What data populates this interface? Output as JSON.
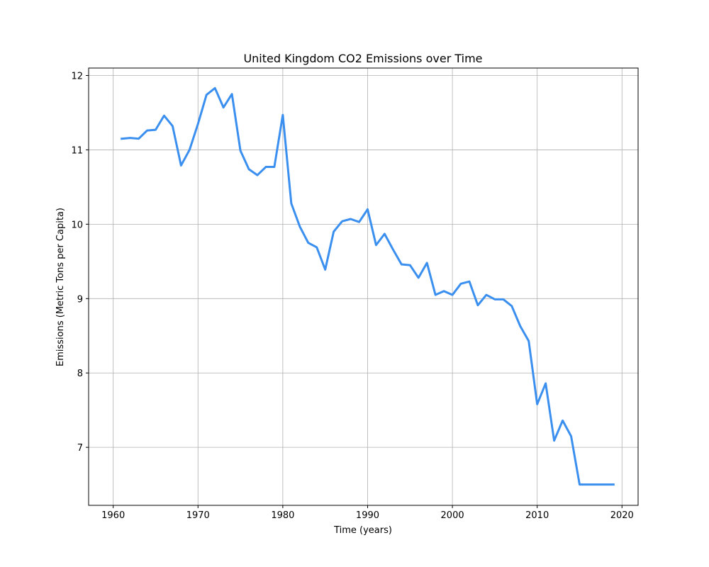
{
  "chart_data": {
    "type": "line",
    "title": "United Kingdom CO2 Emissions over Time",
    "xlabel": "Time (years)",
    "ylabel": "Emissions (Metric Tons per Capita)",
    "xlim": [
      1957.1,
      2021.9
    ],
    "ylim": [
      6.22,
      12.1
    ],
    "xticks": [
      1960,
      1970,
      1980,
      1990,
      2000,
      2010,
      2020
    ],
    "yticks": [
      7,
      8,
      9,
      10,
      11,
      12
    ],
    "grid": true,
    "line_color": "#3a8fef",
    "series": [
      {
        "x": [
          1961,
          1962,
          1963,
          1964,
          1965,
          1966,
          1967,
          1968,
          1969,
          1970,
          1971,
          1972,
          1973,
          1974,
          1975,
          1976,
          1977,
          1978,
          1979,
          1980,
          1981,
          1982,
          1983,
          1984,
          1985,
          1986,
          1987,
          1988,
          1989,
          1990,
          1991,
          1992,
          1993,
          1994,
          1995,
          1996,
          1997,
          1998,
          1999,
          2000,
          2001,
          2002,
          2003,
          2004,
          2005,
          2006,
          2007,
          2008,
          2009,
          2010,
          2011,
          2012,
          2013,
          2014,
          2015,
          2016,
          2017,
          2018,
          2019
        ],
        "values": [
          11.15,
          11.16,
          11.15,
          11.26,
          11.27,
          11.46,
          11.32,
          10.79,
          11.0,
          11.35,
          11.74,
          11.83,
          11.57,
          11.75,
          10.99,
          10.74,
          10.66,
          10.77,
          10.77,
          11.47,
          10.28,
          9.97,
          9.75,
          9.69,
          9.39,
          9.9,
          10.04,
          10.07,
          10.03,
          10.2,
          9.72,
          9.87,
          9.66,
          9.46,
          9.45,
          9.28,
          9.48,
          9.05,
          9.1,
          9.05,
          9.2,
          9.23,
          8.91,
          9.05,
          8.99,
          8.99,
          8.9,
          8.63,
          8.43,
          7.58,
          7.86,
          7.09,
          7.36,
          7.15,
          6.5,
          6.5,
          6.5,
          6.5,
          6.5
        ]
      }
    ]
  }
}
